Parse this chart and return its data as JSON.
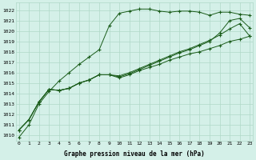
{
  "xlabel": "Graphe pression niveau de la mer (hPa)",
  "bg_color": "#d4f0e8",
  "grid_color": "#b0d8c8",
  "line_color": "#1a5c1a",
  "ylim": [
    1009.5,
    1022.7
  ],
  "xlim": [
    -0.3,
    23.3
  ],
  "yticks": [
    1010,
    1011,
    1012,
    1013,
    1014,
    1015,
    1016,
    1017,
    1018,
    1019,
    1020,
    1021,
    1022
  ],
  "xticks": [
    0,
    1,
    2,
    3,
    4,
    5,
    6,
    7,
    8,
    9,
    10,
    11,
    12,
    13,
    14,
    15,
    16,
    17,
    18,
    19,
    20,
    21,
    22,
    23
  ],
  "series": [
    [
      1009.8,
      1011.0,
      1013.0,
      1014.2,
      1015.2,
      1016.0,
      1016.8,
      1017.5,
      1018.2,
      1020.5,
      1021.7,
      1021.9,
      1022.1,
      1022.1,
      1021.9,
      1021.8,
      1021.9,
      1021.9,
      1021.8,
      1021.5,
      1021.8,
      1021.8,
      1021.6,
      1021.5
    ],
    [
      1010.5,
      1011.5,
      1013.2,
      1014.4,
      1014.3,
      1014.5,
      1015.0,
      1015.3,
      1015.8,
      1015.8,
      1015.5,
      1015.8,
      1016.2,
      1016.5,
      1016.8,
      1017.2,
      1017.5,
      1017.8,
      1018.0,
      1018.3,
      1018.6,
      1019.0,
      1019.2,
      1019.5
    ],
    [
      1010.5,
      1011.5,
      1013.2,
      1014.4,
      1014.3,
      1014.5,
      1015.0,
      1015.3,
      1015.8,
      1015.8,
      1015.7,
      1016.0,
      1016.4,
      1016.8,
      1017.2,
      1017.6,
      1018.0,
      1018.3,
      1018.7,
      1019.1,
      1019.6,
      1020.2,
      1020.7,
      1019.5
    ],
    [
      1010.5,
      1011.5,
      1013.2,
      1014.4,
      1014.3,
      1014.5,
      1015.0,
      1015.3,
      1015.8,
      1015.8,
      1015.6,
      1015.9,
      1016.3,
      1016.7,
      1017.1,
      1017.5,
      1017.9,
      1018.2,
      1018.6,
      1019.0,
      1019.8,
      1021.0,
      1021.2,
      1020.3
    ]
  ]
}
